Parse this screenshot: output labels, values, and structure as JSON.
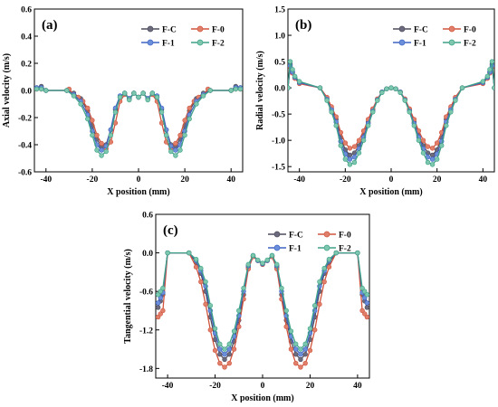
{
  "figure": {
    "series_styles": [
      {
        "name": "F-C",
        "color": "#4d4d5e",
        "dot": "#6b6b7d"
      },
      {
        "name": "F-0",
        "color": "#d0553f",
        "dot": "#e0806a"
      },
      {
        "name": "F-1",
        "color": "#3f65c2",
        "dot": "#6c8fdc"
      },
      {
        "name": "F-2",
        "color": "#3fa187",
        "dot": "#7cc7ad"
      }
    ]
  },
  "chart_data": [
    {
      "panel": "(a)",
      "type": "line",
      "xlabel": "X position (mm)",
      "ylabel": "Axial velocity (m/s)",
      "xlim": [
        -45,
        45
      ],
      "ylim": [
        -0.6,
        0.6
      ],
      "xticks": [
        -40,
        -20,
        0,
        20,
        40
      ],
      "yticks": [
        -0.6,
        -0.4,
        -0.2,
        0.0,
        0.2,
        0.4,
        0.6
      ],
      "ytick_labels": [
        "-0.6",
        "-0.4",
        "-0.2",
        "0.0",
        "0.2",
        "0.4",
        "0.6"
      ],
      "legend_position": "top-right",
      "series": [
        {
          "name": "F-C",
          "x": [
            -44,
            -42,
            -40,
            -31,
            -28,
            -25,
            -22,
            -20,
            -18,
            -16,
            -14,
            -12,
            -10,
            -8,
            -6,
            -4,
            -2,
            0,
            2,
            4,
            6,
            8,
            10,
            12,
            14,
            16,
            18,
            20,
            22,
            25,
            28,
            31,
            40,
            42,
            44
          ],
          "y": [
            0.02,
            0.03,
            0.0,
            0.0,
            -0.02,
            -0.06,
            -0.15,
            -0.26,
            -0.36,
            -0.41,
            -0.4,
            -0.29,
            -0.14,
            -0.05,
            -0.02,
            -0.06,
            -0.02,
            -0.05,
            -0.02,
            -0.06,
            -0.02,
            -0.05,
            -0.14,
            -0.29,
            -0.4,
            -0.41,
            -0.36,
            -0.26,
            -0.15,
            -0.06,
            -0.02,
            0.0,
            0.0,
            0.03,
            0.02
          ]
        },
        {
          "name": "F-0",
          "x": [
            -44,
            -42,
            -40,
            -31,
            -30,
            -28,
            -26,
            -24,
            -22,
            -20,
            -18,
            -16,
            -14,
            -12,
            -10,
            -8,
            -6,
            -4,
            -2,
            0,
            2,
            4,
            6,
            8,
            10,
            12,
            14,
            16,
            18,
            20,
            22,
            24,
            26,
            28,
            30,
            31,
            40,
            42,
            44
          ],
          "y": [
            0.01,
            0.01,
            0.0,
            0.0,
            0.01,
            -0.03,
            -0.05,
            -0.08,
            -0.13,
            -0.22,
            -0.33,
            -0.39,
            -0.43,
            -0.38,
            -0.24,
            -0.08,
            -0.03,
            -0.06,
            -0.02,
            -0.05,
            -0.02,
            -0.06,
            -0.03,
            -0.08,
            -0.24,
            -0.38,
            -0.43,
            -0.39,
            -0.33,
            -0.22,
            -0.13,
            -0.08,
            -0.05,
            -0.03,
            0.01,
            0.0,
            0.0,
            0.01,
            0.01
          ]
        },
        {
          "name": "F-1",
          "x": [
            -44,
            -42,
            -40,
            -31,
            -28,
            -25,
            -22,
            -20,
            -18,
            -16,
            -14,
            -12,
            -10,
            -8,
            -6,
            -4,
            -2,
            0,
            2,
            4,
            6,
            8,
            10,
            12,
            14,
            16,
            18,
            20,
            22,
            25,
            28,
            31,
            40,
            42,
            44
          ],
          "y": [
            0.02,
            0.02,
            0.0,
            0.0,
            -0.03,
            -0.08,
            -0.18,
            -0.3,
            -0.4,
            -0.44,
            -0.41,
            -0.29,
            -0.13,
            -0.04,
            -0.02,
            -0.06,
            -0.02,
            -0.05,
            -0.02,
            -0.06,
            -0.02,
            -0.04,
            -0.13,
            -0.29,
            -0.41,
            -0.44,
            -0.4,
            -0.3,
            -0.18,
            -0.08,
            -0.03,
            0.0,
            0.0,
            0.02,
            0.02
          ]
        },
        {
          "name": "F-2",
          "x": [
            -44,
            -42,
            -40,
            -31,
            -28,
            -25,
            -22,
            -20,
            -18,
            -16,
            -14,
            -12,
            -10,
            -8,
            -6,
            -4,
            -2,
            0,
            2,
            4,
            6,
            8,
            10,
            12,
            14,
            16,
            18,
            20,
            22,
            25,
            28,
            31,
            40,
            42,
            44
          ],
          "y": [
            0.01,
            0.01,
            0.0,
            0.0,
            -0.04,
            -0.1,
            -0.21,
            -0.33,
            -0.44,
            -0.48,
            -0.45,
            -0.33,
            -0.16,
            -0.05,
            -0.02,
            -0.07,
            -0.02,
            -0.05,
            -0.02,
            -0.07,
            -0.02,
            -0.05,
            -0.16,
            -0.33,
            -0.45,
            -0.48,
            -0.44,
            -0.33,
            -0.21,
            -0.1,
            -0.04,
            0.0,
            0.0,
            0.01,
            0.01
          ]
        }
      ]
    },
    {
      "panel": "(b)",
      "type": "line",
      "xlabel": "X position (mm)",
      "ylabel": "Radial velocity (m/s)",
      "xlim": [
        -45,
        45
      ],
      "ylim": [
        -1.6,
        1.5
      ],
      "xticks": [
        -40,
        -20,
        0,
        20,
        40
      ],
      "yticks": [
        -1.5,
        -1.0,
        -0.5,
        0.0,
        0.5,
        1.0,
        1.5
      ],
      "ytick_labels": [
        "-1.5",
        "-1.0",
        "-0.5",
        "0.0",
        "0.5",
        "1.0",
        "1.5"
      ],
      "legend_position": "top-right",
      "series": [
        {
          "name": "F-C",
          "x": [
            -45,
            -44,
            -43,
            -42,
            -40,
            -31,
            -28,
            -26,
            -24,
            -22,
            -20,
            -18,
            -16,
            -14,
            -12,
            -10,
            -8,
            -6,
            -4,
            -2,
            0,
            2,
            4,
            6,
            8,
            10,
            12,
            14,
            16,
            18,
            20,
            22,
            24,
            26,
            28,
            31,
            40,
            42,
            43,
            44,
            45
          ],
          "y": [
            0.0,
            0.45,
            0.3,
            0.2,
            0.1,
            0.0,
            -0.2,
            -0.4,
            -0.6,
            -0.95,
            -1.18,
            -1.28,
            -1.24,
            -1.1,
            -0.9,
            -0.65,
            -0.42,
            -0.22,
            -0.08,
            -0.02,
            0.0,
            -0.02,
            -0.08,
            -0.22,
            -0.42,
            -0.65,
            -0.9,
            -1.1,
            -1.24,
            -1.28,
            -1.18,
            -0.95,
            -0.6,
            -0.4,
            -0.2,
            0.0,
            0.1,
            0.2,
            0.3,
            0.45,
            0.0
          ]
        },
        {
          "name": "F-0",
          "x": [
            -45,
            -44,
            -43,
            -42,
            -40,
            -31,
            -28,
            -26,
            -24,
            -22,
            -20,
            -18,
            -16,
            -14,
            -12,
            -10,
            -8,
            -6,
            -4,
            -2,
            0,
            2,
            4,
            6,
            8,
            10,
            12,
            14,
            16,
            18,
            20,
            22,
            24,
            26,
            28,
            31,
            40,
            42,
            43,
            44,
            45
          ],
          "y": [
            0.0,
            0.4,
            0.28,
            0.18,
            0.08,
            0.0,
            -0.18,
            -0.36,
            -0.55,
            -0.85,
            -1.05,
            -1.15,
            -1.12,
            -1.0,
            -0.82,
            -0.6,
            -0.4,
            -0.21,
            -0.08,
            -0.02,
            0.0,
            -0.02,
            -0.08,
            -0.21,
            -0.4,
            -0.6,
            -0.82,
            -1.0,
            -1.12,
            -1.15,
            -1.05,
            -0.85,
            -0.55,
            -0.36,
            -0.18,
            0.0,
            0.08,
            0.18,
            0.28,
            0.4,
            0.0
          ]
        },
        {
          "name": "F-1",
          "x": [
            -45,
            -44,
            -43,
            -42,
            -40,
            -31,
            -28,
            -26,
            -24,
            -22,
            -20,
            -18,
            -16,
            -14,
            -12,
            -10,
            -8,
            -6,
            -4,
            -2,
            0,
            2,
            4,
            6,
            8,
            10,
            12,
            14,
            16,
            18,
            20,
            22,
            24,
            26,
            28,
            31,
            40,
            42,
            43,
            44,
            45
          ],
          "y": [
            0.0,
            0.42,
            0.3,
            0.2,
            0.1,
            0.0,
            -0.22,
            -0.42,
            -0.65,
            -1.02,
            -1.26,
            -1.36,
            -1.32,
            -1.16,
            -0.94,
            -0.68,
            -0.44,
            -0.23,
            -0.08,
            -0.02,
            0.0,
            -0.02,
            -0.08,
            -0.23,
            -0.44,
            -0.68,
            -0.94,
            -1.16,
            -1.32,
            -1.36,
            -1.26,
            -1.02,
            -0.65,
            -0.42,
            -0.22,
            0.0,
            0.1,
            0.2,
            0.3,
            0.42,
            0.0
          ]
        },
        {
          "name": "F-2",
          "x": [
            -45,
            -44,
            -43,
            -42,
            -40,
            -31,
            -28,
            -26,
            -24,
            -22,
            -20,
            -18,
            -16,
            -14,
            -12,
            -10,
            -8,
            -6,
            -4,
            -2,
            0,
            2,
            4,
            6,
            8,
            10,
            12,
            14,
            16,
            18,
            20,
            22,
            24,
            26,
            28,
            31,
            40,
            42,
            43,
            44,
            45
          ],
          "y": [
            0.0,
            0.5,
            0.35,
            0.22,
            0.12,
            0.0,
            -0.24,
            -0.46,
            -0.72,
            -1.1,
            -1.36,
            -1.46,
            -1.42,
            -1.24,
            -1.0,
            -0.72,
            -0.46,
            -0.24,
            -0.09,
            -0.02,
            0.0,
            -0.02,
            -0.09,
            -0.24,
            -0.46,
            -0.72,
            -1.0,
            -1.24,
            -1.42,
            -1.46,
            -1.36,
            -1.1,
            -0.72,
            -0.46,
            -0.24,
            0.0,
            0.12,
            0.22,
            0.35,
            0.5,
            0.0
          ]
        }
      ]
    },
    {
      "panel": "(c)",
      "type": "line",
      "xlabel": "X position (mm)",
      "ylabel": "Tangential velocity (m/s)",
      "xlim": [
        -45,
        45
      ],
      "ylim": [
        -1.95,
        0.6
      ],
      "xticks": [
        -40,
        -20,
        0,
        20,
        40
      ],
      "yticks": [
        -1.8,
        -1.2,
        -0.6,
        0.0,
        0.6
      ],
      "ytick_labels": [
        "-1.8",
        "-1.2",
        "-0.6",
        "0.0",
        "0.6"
      ],
      "legend_position": "top-right",
      "series": [
        {
          "name": "F-C",
          "x": [
            -44,
            -43,
            -42,
            -40,
            -31,
            -28,
            -26,
            -24,
            -22,
            -20,
            -18,
            -16,
            -14,
            -12,
            -10,
            -8,
            -6,
            -4,
            -2,
            0,
            2,
            4,
            6,
            8,
            10,
            12,
            14,
            16,
            18,
            20,
            22,
            24,
            26,
            28,
            31,
            40,
            42,
            43,
            44
          ],
          "y": [
            -0.85,
            -0.75,
            -0.65,
            0.0,
            0.0,
            -0.15,
            -0.32,
            -0.6,
            -1.0,
            -1.35,
            -1.58,
            -1.66,
            -1.58,
            -1.38,
            -1.05,
            -0.65,
            -0.22,
            -0.05,
            -0.12,
            -0.18,
            -0.12,
            -0.05,
            -0.22,
            -0.65,
            -1.05,
            -1.38,
            -1.58,
            -1.66,
            -1.58,
            -1.35,
            -1.0,
            -0.6,
            -0.32,
            -0.15,
            0.0,
            0.0,
            -0.65,
            -0.75,
            -0.85
          ]
        },
        {
          "name": "F-0",
          "x": [
            -44,
            -43,
            -42,
            -40,
            -31,
            -28,
            -26,
            -24,
            -22,
            -20,
            -18,
            -16,
            -14,
            -12,
            -10,
            -8,
            -6,
            -4,
            -2,
            0,
            2,
            4,
            6,
            8,
            10,
            12,
            14,
            16,
            18,
            20,
            22,
            24,
            26,
            28,
            31,
            40,
            42,
            43,
            44
          ],
          "y": [
            -1.0,
            -0.95,
            -0.9,
            0.0,
            0.0,
            -0.22,
            -0.45,
            -0.8,
            -1.2,
            -1.52,
            -1.72,
            -1.78,
            -1.72,
            -1.5,
            -1.15,
            -0.72,
            -0.25,
            -0.06,
            -0.12,
            -0.18,
            -0.12,
            -0.06,
            -0.25,
            -0.72,
            -1.15,
            -1.5,
            -1.72,
            -1.78,
            -1.72,
            -1.52,
            -1.2,
            -0.8,
            -0.45,
            -0.22,
            0.0,
            0.0,
            -0.9,
            -0.95,
            -1.0
          ]
        },
        {
          "name": "F-1",
          "x": [
            -44,
            -43,
            -42,
            -40,
            -31,
            -28,
            -26,
            -24,
            -22,
            -20,
            -18,
            -16,
            -14,
            -12,
            -10,
            -8,
            -6,
            -4,
            -2,
            0,
            2,
            4,
            6,
            8,
            10,
            12,
            14,
            16,
            18,
            20,
            22,
            24,
            26,
            28,
            31,
            40,
            42,
            43,
            44
          ],
          "y": [
            -0.78,
            -0.7,
            -0.62,
            0.0,
            0.0,
            -0.12,
            -0.28,
            -0.52,
            -0.9,
            -1.25,
            -1.5,
            -1.58,
            -1.5,
            -1.3,
            -0.98,
            -0.6,
            -0.2,
            -0.04,
            -0.12,
            -0.17,
            -0.12,
            -0.04,
            -0.2,
            -0.6,
            -0.98,
            -1.3,
            -1.5,
            -1.58,
            -1.5,
            -1.25,
            -0.9,
            -0.52,
            -0.28,
            -0.12,
            0.0,
            0.0,
            -0.62,
            -0.7,
            -0.78
          ]
        },
        {
          "name": "F-2",
          "x": [
            -44,
            -43,
            -42,
            -40,
            -31,
            -28,
            -26,
            -24,
            -22,
            -20,
            -18,
            -16,
            -14,
            -12,
            -10,
            -8,
            -6,
            -4,
            -2,
            0,
            2,
            4,
            6,
            8,
            10,
            12,
            14,
            16,
            18,
            20,
            22,
            24,
            26,
            28,
            31,
            40,
            42,
            43,
            44
          ],
          "y": [
            -0.65,
            -0.6,
            -0.55,
            0.0,
            0.0,
            -0.1,
            -0.24,
            -0.45,
            -0.82,
            -1.18,
            -1.42,
            -1.5,
            -1.42,
            -1.22,
            -0.9,
            -0.55,
            -0.18,
            -0.04,
            -0.11,
            -0.16,
            -0.11,
            -0.04,
            -0.18,
            -0.55,
            -0.9,
            -1.22,
            -1.42,
            -1.5,
            -1.42,
            -1.18,
            -0.82,
            -0.45,
            -0.24,
            -0.1,
            0.0,
            0.0,
            -0.55,
            -0.6,
            -0.65
          ]
        }
      ]
    }
  ]
}
